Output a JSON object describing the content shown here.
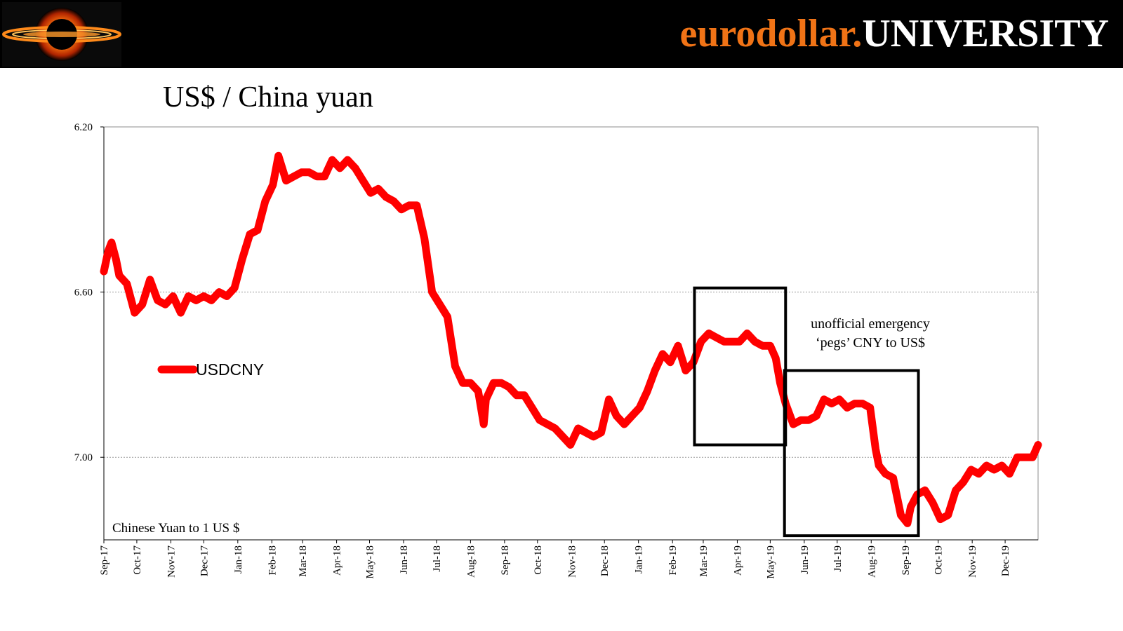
{
  "header": {
    "brand_part1": "eurodollar.",
    "brand_part2": "UNIVERSITY",
    "brand_color": "#f07316",
    "logo_icon": "black-hole-icon"
  },
  "chart_data": {
    "type": "line",
    "title": "US$ / China yuan",
    "xlabel": "",
    "ylabel": "",
    "y_inverted": true,
    "ylim": [
      6.2,
      7.2
    ],
    "y_ticks": [
      "6.20",
      "6.60",
      "7.00"
    ],
    "x_ticks": [
      "Sep-17",
      "Oct-17",
      "Nov-17",
      "Dec-17",
      "Jan-18",
      "Feb-18",
      "Mar-18",
      "Apr-18",
      "May-18",
      "Jun-18",
      "Jul-18",
      "Aug-18",
      "Sep-18",
      "Oct-18",
      "Nov-18",
      "Dec-18",
      "Jan-19",
      "Feb-19",
      "Mar-19",
      "Apr-19",
      "May-19",
      "Jun-19",
      "Jul-19",
      "Aug-19",
      "Sep-19",
      "Oct-19",
      "Nov-19",
      "Dec-19"
    ],
    "grid": true,
    "legend_position": "left-middle",
    "note": "Chinese Yuan to 1 US $",
    "annotation": [
      "unofficial emergency",
      "‘pegs’ CNY to US$"
    ],
    "series": [
      {
        "name": "USDCNY",
        "color": "#ff0000",
        "x": [
          "2017-09-01",
          "2017-09-05",
          "2017-09-08",
          "2017-09-12",
          "2017-09-15",
          "2017-09-22",
          "2017-09-29",
          "2017-10-06",
          "2017-10-13",
          "2017-10-20",
          "2017-10-27",
          "2017-11-03",
          "2017-11-10",
          "2017-11-17",
          "2017-11-24",
          "2017-12-01",
          "2017-12-08",
          "2017-12-15",
          "2017-12-22",
          "2017-12-29",
          "2018-01-05",
          "2018-01-12",
          "2018-01-19",
          "2018-01-26",
          "2018-02-02",
          "2018-02-07",
          "2018-02-14",
          "2018-02-21",
          "2018-02-28",
          "2018-03-07",
          "2018-03-14",
          "2018-03-21",
          "2018-03-28",
          "2018-04-04",
          "2018-04-11",
          "2018-04-18",
          "2018-04-25",
          "2018-05-02",
          "2018-05-09",
          "2018-05-16",
          "2018-05-23",
          "2018-05-30",
          "2018-06-06",
          "2018-06-13",
          "2018-06-20",
          "2018-06-27",
          "2018-07-04",
          "2018-07-11",
          "2018-07-18",
          "2018-07-25",
          "2018-08-01",
          "2018-08-08",
          "2018-08-13",
          "2018-08-15",
          "2018-08-22",
          "2018-08-29",
          "2018-09-05",
          "2018-09-12",
          "2018-09-19",
          "2018-09-26",
          "2018-10-03",
          "2018-10-10",
          "2018-10-17",
          "2018-10-24",
          "2018-10-31",
          "2018-11-07",
          "2018-11-14",
          "2018-11-21",
          "2018-11-28",
          "2018-12-05",
          "2018-12-12",
          "2018-12-19",
          "2018-12-26",
          "2019-01-02",
          "2019-01-09",
          "2019-01-16",
          "2019-01-23",
          "2019-01-30",
          "2019-02-06",
          "2019-02-13",
          "2019-02-20",
          "2019-02-27",
          "2019-03-06",
          "2019-03-13",
          "2019-03-20",
          "2019-03-27",
          "2019-04-03",
          "2019-04-10",
          "2019-04-17",
          "2019-04-24",
          "2019-05-01",
          "2019-05-06",
          "2019-05-10",
          "2019-05-15",
          "2019-05-22",
          "2019-05-29",
          "2019-06-05",
          "2019-06-12",
          "2019-06-19",
          "2019-06-26",
          "2019-07-03",
          "2019-07-10",
          "2019-07-17",
          "2019-07-24",
          "2019-07-31",
          "2019-08-05",
          "2019-08-08",
          "2019-08-14",
          "2019-08-21",
          "2019-08-28",
          "2019-09-03",
          "2019-09-06",
          "2019-09-12",
          "2019-09-19",
          "2019-09-26",
          "2019-10-03",
          "2019-10-10",
          "2019-10-17",
          "2019-10-24",
          "2019-10-31",
          "2019-11-07",
          "2019-11-14",
          "2019-11-21",
          "2019-11-28",
          "2019-12-05",
          "2019-12-12",
          "2019-12-19",
          "2019-12-26",
          "2019-12-31"
        ],
        "values": [
          6.55,
          6.5,
          6.48,
          6.52,
          6.56,
          6.58,
          6.65,
          6.63,
          6.57,
          6.62,
          6.63,
          6.61,
          6.65,
          6.61,
          6.62,
          6.61,
          6.62,
          6.6,
          6.61,
          6.59,
          6.52,
          6.46,
          6.45,
          6.38,
          6.34,
          6.27,
          6.33,
          6.32,
          6.31,
          6.31,
          6.32,
          6.32,
          6.28,
          6.3,
          6.28,
          6.3,
          6.33,
          6.36,
          6.35,
          6.37,
          6.38,
          6.4,
          6.39,
          6.39,
          6.47,
          6.6,
          6.63,
          6.66,
          6.78,
          6.82,
          6.82,
          6.84,
          6.92,
          6.86,
          6.82,
          6.82,
          6.83,
          6.85,
          6.85,
          6.88,
          6.91,
          6.92,
          6.93,
          6.95,
          6.97,
          6.93,
          6.94,
          6.95,
          6.94,
          6.86,
          6.9,
          6.92,
          6.9,
          6.88,
          6.84,
          6.79,
          6.75,
          6.77,
          6.73,
          6.79,
          6.77,
          6.72,
          6.7,
          6.71,
          6.72,
          6.72,
          6.72,
          6.7,
          6.72,
          6.73,
          6.73,
          6.76,
          6.82,
          6.87,
          6.92,
          6.91,
          6.91,
          6.9,
          6.86,
          6.87,
          6.86,
          6.88,
          6.87,
          6.87,
          6.88,
          6.98,
          7.02,
          7.04,
          7.05,
          7.14,
          7.16,
          7.12,
          7.09,
          7.08,
          7.11,
          7.15,
          7.14,
          7.08,
          7.06,
          7.03,
          7.04,
          7.02,
          7.03,
          7.02,
          7.04,
          7.0,
          7.0,
          7.0,
          6.97
        ]
      }
    ],
    "boxes": [
      {
        "x_start": "2019-02-21",
        "x_end": "2019-05-15",
        "y_top": 6.59,
        "y_bottom": 6.97
      },
      {
        "x_start": "2019-05-14",
        "x_end": "2019-09-13",
        "y_top": 6.79,
        "y_bottom": 7.19
      }
    ]
  }
}
